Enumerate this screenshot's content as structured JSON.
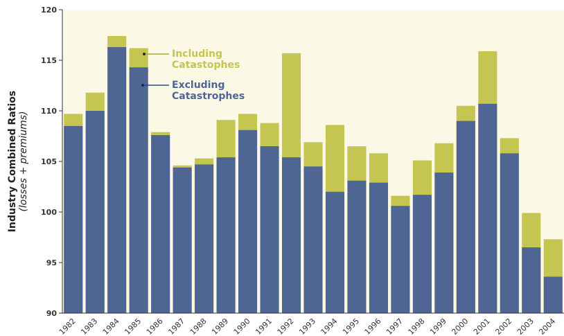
{
  "chart_data": {
    "type": "bar",
    "y_label": "Industry Combined Ratios",
    "y_sublabel": "(losses + premiums)",
    "categories": [
      "1982",
      "1983",
      "1984",
      "1985",
      "1986",
      "1987",
      "1988",
      "1989",
      "1990",
      "1991",
      "1992",
      "1993",
      "1994",
      "1995",
      "1996",
      "1997",
      "1998",
      "1999",
      "2000",
      "2001",
      "2002",
      "2003",
      "2004"
    ],
    "series": [
      {
        "name": "Including Catastophes",
        "color": "#c5c552",
        "values": [
          109.7,
          111.8,
          117.4,
          116.2,
          107.9,
          104.6,
          105.3,
          109.1,
          109.7,
          108.8,
          115.7,
          106.9,
          108.6,
          106.5,
          105.8,
          101.6,
          105.1,
          106.8,
          110.5,
          115.9,
          107.3,
          99.9,
          97.3
        ]
      },
      {
        "name": "Excluding Catastrophes",
        "color": "#4f6593",
        "values": [
          108.5,
          110.0,
          116.3,
          114.3,
          107.6,
          104.4,
          104.7,
          105.4,
          108.1,
          106.5,
          105.4,
          104.5,
          102.0,
          103.1,
          102.9,
          100.6,
          101.7,
          103.9,
          109.0,
          110.7,
          105.8,
          96.5,
          93.6
        ]
      }
    ],
    "ylim": [
      90,
      120
    ],
    "yticks": [
      90,
      95,
      100,
      105,
      110,
      115,
      120
    ],
    "plot_background": "#fbf8e6"
  }
}
